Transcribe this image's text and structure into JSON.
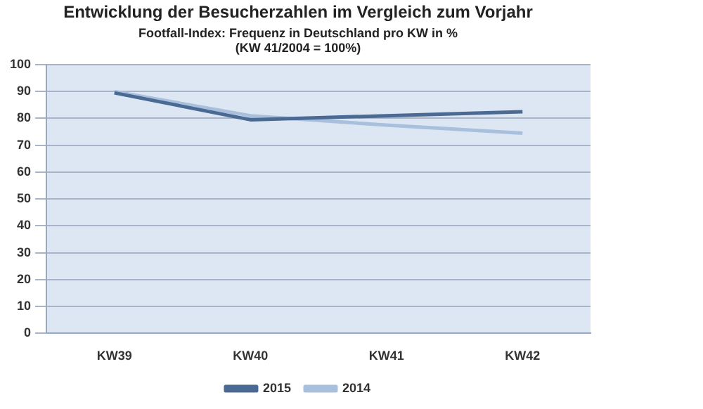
{
  "chart_data": {
    "type": "line",
    "title": "Entwicklung der Besucherzahlen im Vergleich zum Vorjahr",
    "subtitle": "Footfall-Index: Frequenz in Deutschland pro KW in %\n(KW 41/2004 = 100%)",
    "categories": [
      "KW39",
      "KW40",
      "KW41",
      "KW42"
    ],
    "series": [
      {
        "name": "2015",
        "color": "#4a6a94",
        "values": [
          89.5,
          79.5,
          81,
          82.5
        ]
      },
      {
        "name": "2014",
        "color": "#a9c0dc",
        "values": [
          90,
          81,
          77.5,
          74.5
        ]
      }
    ],
    "ylim": [
      0,
      100
    ],
    "yticks": [
      0,
      10,
      20,
      30,
      40,
      50,
      60,
      70,
      80,
      90,
      100
    ],
    "grid": "y",
    "legend": "bottom",
    "marker": "none",
    "line_style": "solid"
  }
}
